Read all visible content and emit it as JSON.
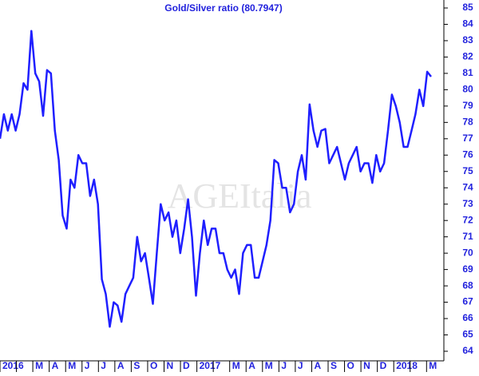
{
  "chart_data": {
    "type": "line",
    "title": "Gold/Silver ratio (80.7947)",
    "watermark": "AGEItalia",
    "color": "#1f1fff",
    "months": [
      "2016",
      null,
      "M",
      "A",
      "M",
      "J",
      "J",
      "A",
      "S",
      "O",
      "N",
      "D",
      "2017",
      null,
      "M",
      "A",
      "M",
      "J",
      "J",
      "A",
      "S",
      "O",
      "N",
      "D",
      "2018",
      null,
      "M"
    ],
    "values": [
      77,
      78.5,
      77.5,
      78.5,
      77.5,
      78.5,
      80.4,
      80,
      83.6,
      81,
      80.5,
      78.4,
      81.2,
      81,
      77.5,
      75.7,
      72.3,
      71.5,
      74.5,
      74,
      76,
      75.5,
      75.5,
      73.5,
      74.5,
      73,
      68.4,
      67.5,
      65.5,
      67,
      66.8,
      65.8,
      67.5,
      68,
      68.5,
      71,
      69.5,
      70,
      68.5,
      66.9,
      70,
      73,
      72,
      72.5,
      71,
      72,
      70,
      71.5,
      73.3,
      71,
      67.4,
      70,
      72,
      70.5,
      71.5,
      71.5,
      70,
      70,
      69,
      68.5,
      69,
      67.5,
      70,
      70.5,
      70.5,
      68.5,
      68.5,
      69.5,
      70.5,
      72,
      75.7,
      75.5,
      74,
      74,
      72.5,
      73,
      75,
      76,
      74.5,
      79.1,
      77.5,
      76.5,
      77.5,
      77.6,
      75.5,
      76,
      76.5,
      75.5,
      74.5,
      75.5,
      76,
      76.5,
      75,
      75.5,
      75.5,
      74.3,
      76,
      75,
      75.5,
      77.5,
      79.7,
      79,
      78,
      76.5,
      76.5,
      77.5,
      78.5,
      80,
      79,
      81.1,
      80.8
    ],
    "ylim": [
      64,
      85
    ],
    "yticks": [
      64,
      65,
      66,
      67,
      68,
      69,
      70,
      71,
      72,
      73,
      74,
      75,
      76,
      77,
      78,
      79,
      80,
      81,
      82,
      83,
      84,
      85
    ]
  }
}
